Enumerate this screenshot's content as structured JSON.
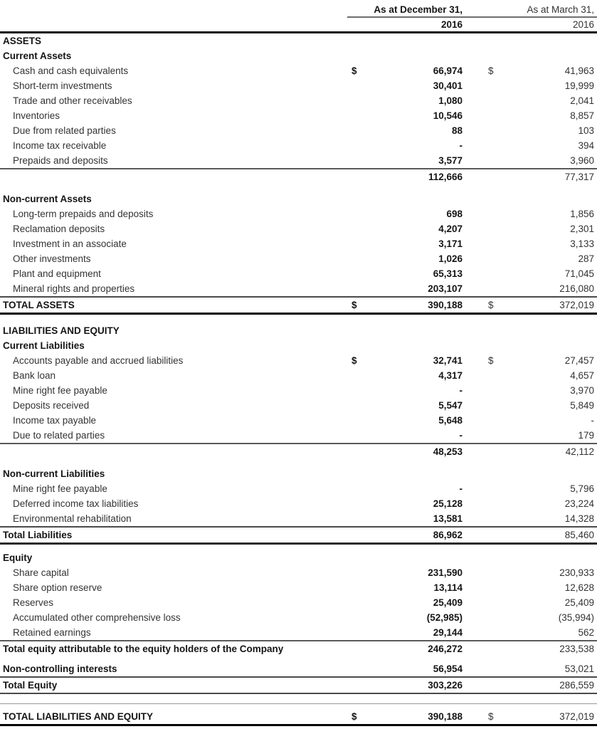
{
  "currency": "$",
  "header": {
    "dec": {
      "line1": "As at December 31,",
      "line2": "2016"
    },
    "mar": {
      "line1": "As at March 31,",
      "line2": "2016"
    }
  },
  "rows": [
    {
      "t": "section",
      "label": "ASSETS"
    },
    {
      "t": "section",
      "label": "Current Assets"
    },
    {
      "t": "item",
      "label": "Cash and cash equivalents",
      "dec": "66,974",
      "mar": "41,963",
      "dd": true,
      "md": true
    },
    {
      "t": "item",
      "label": "Short-term investments",
      "dec": "30,401",
      "mar": "19,999"
    },
    {
      "t": "item",
      "label": "Trade and other receivables",
      "dec": "1,080",
      "mar": "2,041"
    },
    {
      "t": "item",
      "label": "Inventories",
      "dec": "10,546",
      "mar": "8,857"
    },
    {
      "t": "item",
      "label": "Due from related parties",
      "dec": "88",
      "mar": "103"
    },
    {
      "t": "item",
      "label": "Income tax receivable",
      "dec": "-",
      "mar": "394"
    },
    {
      "t": "item",
      "label": "Prepaids and deposits",
      "dec": "3,577",
      "mar": "3,960",
      "b": "med"
    },
    {
      "t": "subtotal",
      "label": "",
      "dec": "112,666",
      "mar": "77,317"
    },
    {
      "t": "spacer",
      "h": 10
    },
    {
      "t": "section",
      "label": "Non-current Assets"
    },
    {
      "t": "item",
      "label": "Long-term prepaids and deposits",
      "dec": "698",
      "mar": "1,856"
    },
    {
      "t": "item",
      "label": "Reclamation deposits",
      "dec": "4,207",
      "mar": "2,301"
    },
    {
      "t": "item",
      "label": "Investment in an associate",
      "dec": "3,171",
      "mar": "3,133"
    },
    {
      "t": "item",
      "label": "Other investments",
      "dec": "1,026",
      "mar": "287"
    },
    {
      "t": "item",
      "label": "Plant and equipment",
      "dec": "65,313",
      "mar": "71,045"
    },
    {
      "t": "item",
      "label": "Mineral rights and properties",
      "dec": "203,107",
      "mar": "216,080",
      "b": "thin"
    },
    {
      "t": "total",
      "label": "TOTAL ASSETS",
      "dec": "390,188",
      "mar": "372,019",
      "dd": true,
      "md": true,
      "b": "thick"
    },
    {
      "t": "spacer",
      "h": 12
    },
    {
      "t": "section",
      "label": "LIABILITIES AND EQUITY"
    },
    {
      "t": "section",
      "label": "Current Liabilities"
    },
    {
      "t": "item",
      "label": "Accounts payable and accrued liabilities",
      "dec": "32,741",
      "mar": "27,457",
      "dd": true,
      "md": true
    },
    {
      "t": "item",
      "label": "Bank loan",
      "dec": "4,317",
      "mar": "4,657"
    },
    {
      "t": "item",
      "label": "Mine right fee payable",
      "dec": "-",
      "mar": "3,970"
    },
    {
      "t": "item",
      "label": "Deposits received",
      "dec": "5,547",
      "mar": "5,849"
    },
    {
      "t": "item",
      "label": "Income tax payable",
      "dec": "5,648",
      "mar": "-"
    },
    {
      "t": "item",
      "label": "Due to related parties",
      "dec": "-",
      "mar": "179",
      "b": "med"
    },
    {
      "t": "subtotal",
      "label": "",
      "dec": "48,253",
      "mar": "42,112"
    },
    {
      "t": "spacer",
      "h": 10
    },
    {
      "t": "section",
      "label": "Non-current Liabilities"
    },
    {
      "t": "item",
      "label": "Mine right fee payable",
      "dec": "-",
      "mar": "5,796"
    },
    {
      "t": "item",
      "label": "Deferred income tax liabilities",
      "dec": "25,128",
      "mar": "23,224"
    },
    {
      "t": "item",
      "label": "Environmental rehabilitation",
      "dec": "13,581",
      "mar": "14,328",
      "b": "thin"
    },
    {
      "t": "total",
      "label": "Total Liabilities",
      "dec": "86,962",
      "mar": "85,460",
      "b": "medthick"
    },
    {
      "t": "spacer",
      "h": 8
    },
    {
      "t": "section",
      "label": "Equity"
    },
    {
      "t": "item",
      "label": "Share capital",
      "dec": "231,590",
      "mar": "230,933"
    },
    {
      "t": "item",
      "label": "Share option reserve",
      "dec": "13,114",
      "mar": "12,628"
    },
    {
      "t": "item",
      "label": "Reserves",
      "dec": "25,409",
      "mar": "25,409"
    },
    {
      "t": "item",
      "label": "Accumulated other comprehensive loss",
      "dec": "(52,985)",
      "mar": "(35,994)"
    },
    {
      "t": "item",
      "label": "Retained earnings",
      "dec": "29,144",
      "mar": "562",
      "b": "med"
    },
    {
      "t": "total",
      "label": "Total equity attributable to the equity holders of the Company",
      "dec": "246,272",
      "mar": "233,538"
    },
    {
      "t": "spacer",
      "h": 7
    },
    {
      "t": "total",
      "label": "Non-controlling interests",
      "dec": "56,954",
      "mar": "53,021",
      "b": "thin"
    },
    {
      "t": "total",
      "label": "Total Equity",
      "dec": "303,226",
      "mar": "286,559",
      "b": "thin"
    },
    {
      "t": "spacer",
      "h": 13,
      "b": "light"
    },
    {
      "t": "spacer",
      "h": 7
    },
    {
      "t": "total",
      "label": "TOTAL LIABILITIES AND EQUITY",
      "dec": "390,188",
      "mar": "372,019",
      "dd": true,
      "md": true,
      "b": "thick"
    }
  ]
}
